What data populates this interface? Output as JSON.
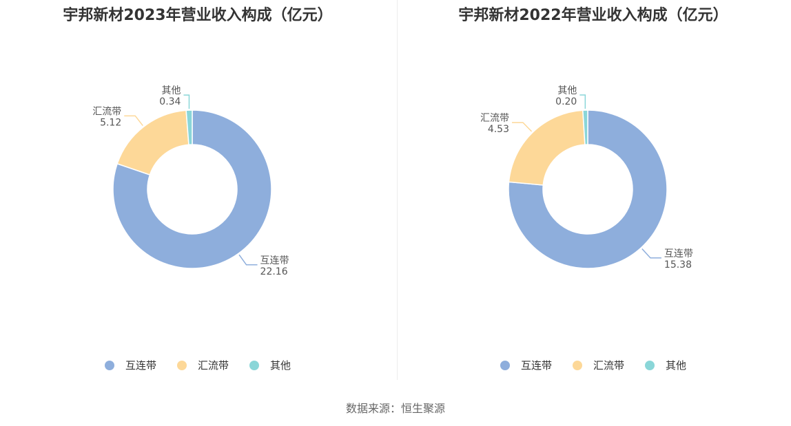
{
  "source_text": "数据来源：恒生聚源",
  "colors": {
    "互连带": "#8eaedc",
    "汇流带": "#fdd898",
    "其他": "#8ad6d8"
  },
  "chart_data": [
    {
      "type": "pie",
      "variant": "donut",
      "title": "宇邦新材2023年营业收入构成（亿元）",
      "categories": [
        "互连带",
        "汇流带",
        "其他"
      ],
      "values": [
        22.16,
        5.12,
        0.34
      ],
      "value_labels": [
        "22.16",
        "5.12",
        "0.34"
      ],
      "legend": "bottom-center"
    },
    {
      "type": "pie",
      "variant": "donut",
      "title": "宇邦新材2022年营业收入构成（亿元）",
      "categories": [
        "互连带",
        "汇流带",
        "其他"
      ],
      "values": [
        15.38,
        4.53,
        0.2
      ],
      "value_labels": [
        "15.38",
        "4.53",
        "0.20"
      ],
      "legend": "bottom-center"
    }
  ]
}
